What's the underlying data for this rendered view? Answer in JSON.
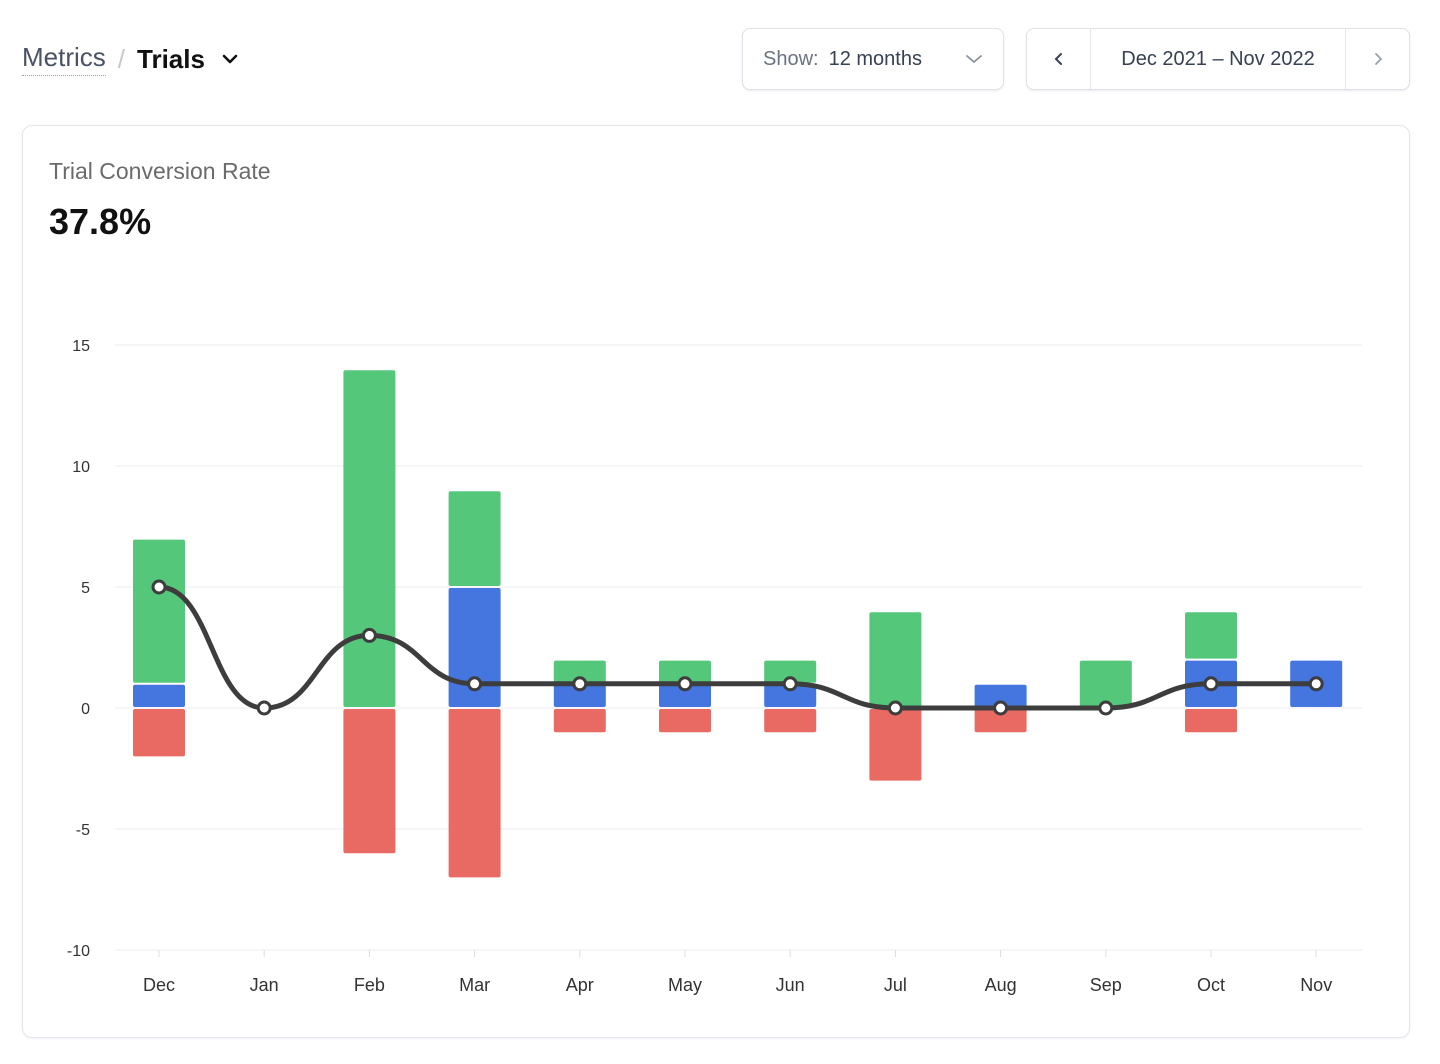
{
  "breadcrumb": {
    "parent": "Metrics",
    "separator": "/",
    "current": "Trials"
  },
  "show_select": {
    "label": "Show:",
    "value": "12 months"
  },
  "date_range": {
    "value": "Dec 2021 – Nov 2022"
  },
  "card": {
    "title": "Trial Conversion Rate",
    "value": "37.8%"
  },
  "colors": {
    "green": "#55c77a",
    "blue": "#4575df",
    "red": "#e86a62",
    "line": "#3d3d3d"
  },
  "chart_data": {
    "type": "bar",
    "title": "Trial Conversion Rate",
    "categories": [
      "Dec",
      "Jan",
      "Feb",
      "Mar",
      "Apr",
      "May",
      "Jun",
      "Jul",
      "Aug",
      "Sep",
      "Oct",
      "Nov"
    ],
    "series": [
      {
        "name": "blue",
        "stack": "positive",
        "values": [
          1,
          0,
          0,
          5,
          1,
          1,
          1,
          0,
          1,
          0,
          2,
          2
        ]
      },
      {
        "name": "green",
        "stack": "positive",
        "values": [
          6,
          0,
          14,
          4,
          1,
          1,
          1,
          4,
          0,
          2,
          2,
          0
        ]
      },
      {
        "name": "red",
        "stack": "negative",
        "values": [
          -2,
          0,
          -6,
          -7,
          -1,
          -1,
          -1,
          -3,
          -1,
          0,
          -1,
          0
        ]
      },
      {
        "name": "line",
        "type": "line",
        "values": [
          5,
          0,
          3,
          1,
          1,
          1,
          1,
          0,
          0,
          0,
          1,
          1
        ]
      }
    ],
    "yticks": [
      15,
      10,
      5,
      0,
      -5,
      -10
    ],
    "ylim": [
      -10,
      15
    ],
    "grid": true,
    "xlabel": "",
    "ylabel": ""
  }
}
